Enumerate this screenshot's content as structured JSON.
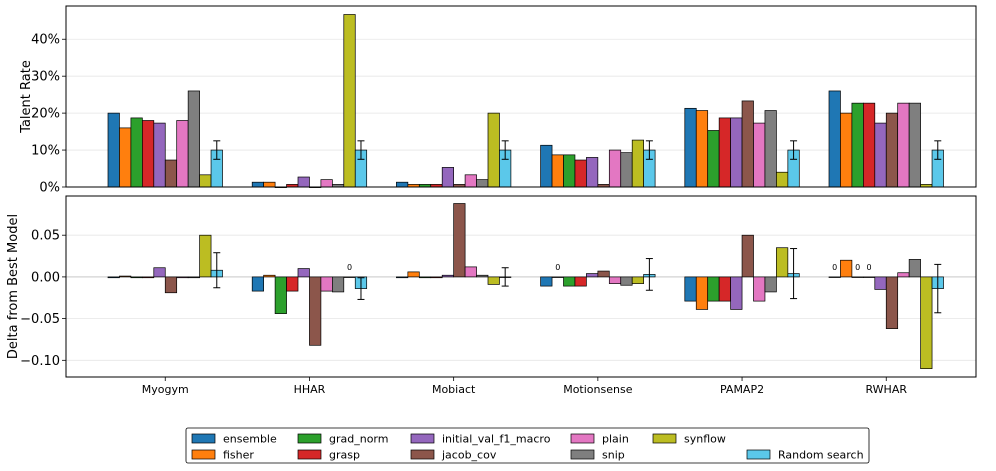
{
  "chart_data": [
    {
      "type": "bar",
      "panel": "top",
      "ylabel": "Talent Rate",
      "ylim": [
        0,
        49
      ],
      "yticks": [
        0,
        10,
        20,
        30,
        40
      ],
      "ytick_labels": [
        "0%",
        "10%",
        "20%",
        "30%",
        "40%"
      ],
      "grid": "horizontal",
      "categories": [
        "Myogym",
        "HHAR",
        "Mobiact",
        "Motionsense",
        "PAMAP2",
        "RWHAR"
      ],
      "series": [
        {
          "name": "ensemble",
          "color": "#1f77b4",
          "values": [
            20,
            1.3,
            1.3,
            11.3,
            21.3,
            26
          ]
        },
        {
          "name": "fisher",
          "color": "#ff7f0e",
          "values": [
            16,
            1.3,
            0.7,
            8.7,
            20.7,
            20
          ]
        },
        {
          "name": "grad_norm",
          "color": "#2ca02c",
          "values": [
            18.7,
            0,
            0.7,
            8.7,
            15.3,
            22.7
          ]
        },
        {
          "name": "grasp",
          "color": "#d62728",
          "values": [
            18,
            0.7,
            0.7,
            7.3,
            18.7,
            22.7
          ]
        },
        {
          "name": "initial_val_f1_macro",
          "color": "#9467bd",
          "values": [
            17.3,
            2.7,
            5.3,
            8,
            18.7,
            17.3
          ]
        },
        {
          "name": "jacob_cov",
          "color": "#8c564b",
          "values": [
            7.3,
            0,
            0.7,
            0.7,
            23.3,
            20
          ]
        },
        {
          "name": "plain",
          "color": "#e377c2",
          "values": [
            18,
            2,
            3.3,
            10,
            17.3,
            22.7
          ]
        },
        {
          "name": "snip",
          "color": "#7f7f7f",
          "values": [
            26,
            0.7,
            2,
            9.3,
            20.7,
            22.7
          ]
        },
        {
          "name": "synflow",
          "color": "#bcbd22",
          "values": [
            3.3,
            46.7,
            20,
            12.7,
            4,
            0.7
          ]
        },
        {
          "name": "Random search",
          "color": "#5bc8ea",
          "values": [
            10,
            10,
            10,
            10,
            10,
            10
          ],
          "error": [
            2.5,
            2.5,
            2.5,
            2.5,
            2.5,
            2.5
          ]
        }
      ]
    },
    {
      "type": "bar",
      "panel": "bottom",
      "ylabel": "Delta from Best Model",
      "ylim": [
        -0.12,
        0.097
      ],
      "yticks": [
        -0.1,
        -0.05,
        0,
        0.05
      ],
      "ytick_labels": [
        "−0.10",
        "−0.05",
        "0.00",
        "0.05"
      ],
      "grid": "horizontal",
      "categories": [
        "Myogym",
        "HHAR",
        "Mobiact",
        "Motionsense",
        "PAMAP2",
        "RWHAR"
      ],
      "series": [
        {
          "name": "ensemble",
          "color": "#1f77b4",
          "values": [
            -0.001,
            -0.017,
            -0.001,
            -0.011,
            -0.029,
            0
          ]
        },
        {
          "name": "fisher",
          "color": "#ff7f0e",
          "values": [
            0.001,
            0.002,
            0.006,
            0,
            -0.039,
            0.02
          ]
        },
        {
          "name": "grad_norm",
          "color": "#2ca02c",
          "values": [
            -0.001,
            -0.044,
            -0.001,
            -0.011,
            -0.029,
            0
          ]
        },
        {
          "name": "grasp",
          "color": "#d62728",
          "values": [
            -0.001,
            -0.017,
            -0.001,
            -0.011,
            -0.029,
            0
          ]
        },
        {
          "name": "initial_val_f1_macro",
          "color": "#9467bd",
          "values": [
            0.011,
            0.01,
            0.002,
            0.004,
            -0.039,
            -0.015
          ]
        },
        {
          "name": "jacob_cov",
          "color": "#8c564b",
          "values": [
            -0.019,
            -0.082,
            0.088,
            0.007,
            0.05,
            -0.062
          ]
        },
        {
          "name": "plain",
          "color": "#e377c2",
          "values": [
            -0.001,
            -0.017,
            0.012,
            -0.008,
            -0.029,
            0.005
          ]
        },
        {
          "name": "snip",
          "color": "#7f7f7f",
          "values": [
            -0.001,
            -0.018,
            0.002,
            -0.01,
            -0.018,
            0.021
          ]
        },
        {
          "name": "synflow",
          "color": "#bcbd22",
          "values": [
            0.05,
            0,
            -0.009,
            -0.008,
            0.035,
            -0.11
          ]
        },
        {
          "name": "Random search",
          "color": "#5bc8ea",
          "values": [
            0.008,
            -0.014,
            0,
            0.003,
            0.004,
            -0.014
          ],
          "error": [
            0.021,
            0.013,
            0.011,
            0.019,
            0.03,
            0.029
          ]
        }
      ],
      "annotations": [
        {
          "category": "HHAR",
          "series": "synflow",
          "text": "0"
        },
        {
          "category": "Motionsense",
          "series": "fisher",
          "text": "0"
        },
        {
          "category": "RWHAR",
          "series": "ensemble",
          "text": "0"
        },
        {
          "category": "RWHAR",
          "series": "grad_norm",
          "text": "0"
        },
        {
          "category": "RWHAR",
          "series": "grasp",
          "text": "0"
        }
      ]
    }
  ],
  "legend": {
    "position": "bottom-center",
    "columns": 6,
    "entries": [
      {
        "label": "ensemble",
        "color": "#1f77b4"
      },
      {
        "label": "fisher",
        "color": "#ff7f0e"
      },
      {
        "label": "grad_norm",
        "color": "#2ca02c"
      },
      {
        "label": "grasp",
        "color": "#d62728"
      },
      {
        "label": "initial_val_f1_macro",
        "color": "#9467bd"
      },
      {
        "label": "jacob_cov",
        "color": "#8c564b"
      },
      {
        "label": "plain",
        "color": "#e377c2"
      },
      {
        "label": "snip",
        "color": "#7f7f7f"
      },
      {
        "label": "synflow",
        "color": "#bcbd22"
      },
      {
        "label": "Random search",
        "color": "#5bc8ea"
      }
    ]
  }
}
